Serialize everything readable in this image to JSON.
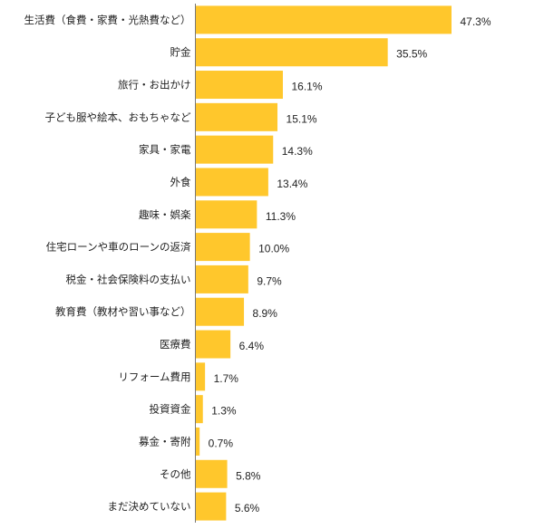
{
  "colors": {
    "bar": "#FFC72C",
    "axis": "#777777",
    "text": "#222222"
  },
  "chart_data": {
    "type": "bar",
    "orientation": "horizontal",
    "categories": [
      "生活費（食費・家費・光熱費など）",
      "貯金",
      "旅行・お出かけ",
      "子ども服や絵本、おもちゃなど",
      "家具・家電",
      "外食",
      "趣味・娯楽",
      "住宅ローンや車のローンの返済",
      "税金・社会保険料の支払い",
      "教育費（教材や習い事など）",
      "医療費",
      "リフォーム費用",
      "投資資金",
      "募金・寄附",
      "その他",
      "まだ決めていない"
    ],
    "values": [
      47.3,
      35.5,
      16.1,
      15.1,
      14.3,
      13.4,
      11.3,
      10.0,
      9.7,
      8.9,
      6.4,
      1.7,
      1.3,
      0.7,
      5.8,
      5.6
    ],
    "value_labels": [
      "47.3%",
      "35.5%",
      "16.1%",
      "15.1%",
      "14.3%",
      "13.4%",
      "11.3%",
      "10.0%",
      "9.7%",
      "8.9%",
      "6.4%",
      "1.7%",
      "1.3%",
      "0.7%",
      "5.8%",
      "5.6%"
    ],
    "xlim": [
      0,
      47.3
    ],
    "grid": false,
    "legend": "none"
  }
}
